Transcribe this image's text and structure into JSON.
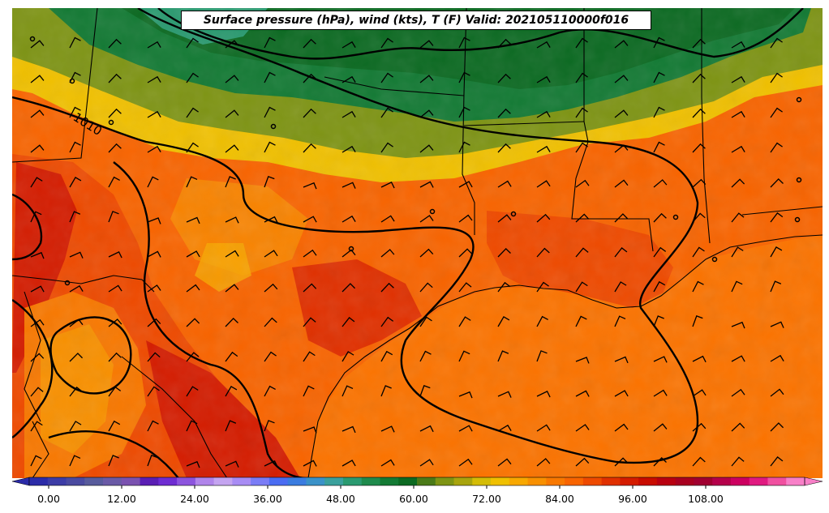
{
  "title": "Surface pressure (hPa), wind (kts), T (F) Valid: 202105110000f016",
  "isobar_label": "1010",
  "colorbar": {
    "tick_labels": [
      "0.00",
      "12.00",
      "24.00",
      "36.00",
      "48.00",
      "60.00",
      "72.00",
      "84.00",
      "96.00",
      "108.00"
    ],
    "colors": [
      "#2b2ba8",
      "#3c3ca6",
      "#4a4aa0",
      "#585b9c",
      "#6a5aa6",
      "#7a52b0",
      "#5a1eb4",
      "#6e2cd2",
      "#8c54de",
      "#b084ea",
      "#c4a4f0",
      "#a88cf4",
      "#7a7cf6",
      "#4a6cf2",
      "#3a7ce0",
      "#3a92c8",
      "#3aa09c",
      "#2a9a70",
      "#1e8a4c",
      "#137a34",
      "#0c6a22",
      "#4a7a18",
      "#7e9414",
      "#a8a40e",
      "#d4bc06",
      "#f0c000",
      "#f8a800",
      "#f89000",
      "#f87800",
      "#f86400",
      "#ee4a00",
      "#e03000",
      "#d41c00",
      "#c80c00",
      "#b80010",
      "#a80020",
      "#a00030",
      "#b4004a",
      "#cc0060",
      "#e01a80",
      "#f050a0",
      "#f880c8"
    ]
  },
  "colors": {
    "coast": "#000000",
    "isobar": "#000000"
  }
}
